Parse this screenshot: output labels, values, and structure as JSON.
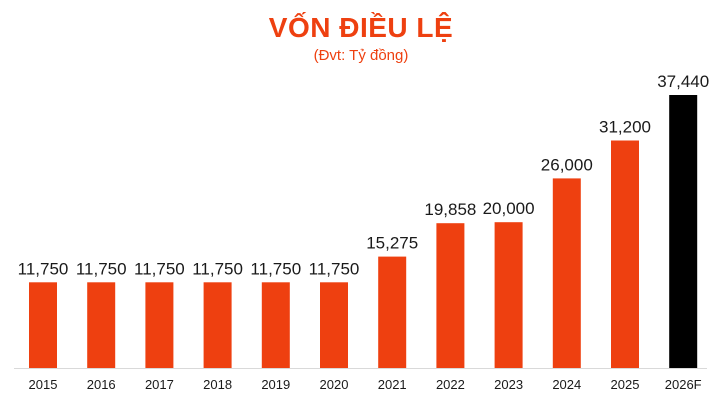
{
  "chart_data": {
    "type": "bar",
    "title": "VỐN ĐIỀU LỆ",
    "subtitle": "(Đvt: Tỷ đồng)",
    "xlabel": "",
    "ylabel": "",
    "ylim": [
      0,
      37440
    ],
    "grid": false,
    "categories": [
      "2015",
      "2016",
      "2017",
      "2018",
      "2019",
      "2020",
      "2021",
      "2022",
      "2023",
      "2024",
      "2025",
      "2026F"
    ],
    "values": [
      11750,
      11750,
      11750,
      11750,
      11750,
      11750,
      15275,
      19858,
      20000,
      26000,
      31200,
      37440
    ],
    "value_labels": [
      "11,750",
      "11,750",
      "11,750",
      "11,750",
      "11,750",
      "11,750",
      "15,275",
      "19,858",
      "20,000",
      "26,000",
      "31,200",
      "37,440"
    ],
    "colors": {
      "bar": "#EE4010",
      "forecast_bar": "#000000",
      "title": "#EE4010",
      "axis": "#d9d9d9"
    }
  }
}
